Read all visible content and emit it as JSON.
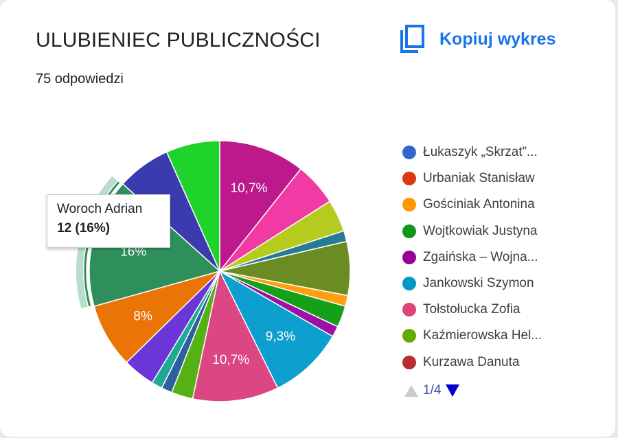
{
  "header": {
    "title": "ULUBIENIEC PUBLICZNOŚCI",
    "responses": "75 odpowiedzi",
    "copy_label": "Kopiuj wykres",
    "copy_icon": "copy-icon"
  },
  "chart_data": {
    "type": "pie",
    "title": "ULUBIENIEC PUBLICZNOŚCI",
    "total": 75,
    "slices": [
      {
        "value": 8,
        "color": "#bc1a8c",
        "label_text": "10,7%"
      },
      {
        "value": 4,
        "color": "#f23aa5",
        "label_text": ""
      },
      {
        "value": 3,
        "color": "#b5cc1e",
        "label_text": ""
      },
      {
        "value": 1,
        "color": "#287b97",
        "label_text": ""
      },
      {
        "value": 5,
        "color": "#6b8c22",
        "label_text": ""
      },
      {
        "value": 1,
        "color": "#ff9f10",
        "label_text": ""
      },
      {
        "value": 2,
        "color": "#16a01a",
        "label_text": ""
      },
      {
        "value": 1,
        "color": "#9c0fa8",
        "label_text": ""
      },
      {
        "value": 7,
        "color": "#0d9fce",
        "label_text": "9,3%"
      },
      {
        "value": 8,
        "color": "#dc4682",
        "label_text": "10,7%"
      },
      {
        "value": 2,
        "color": "#56b214",
        "label_text": ""
      },
      {
        "value": 1,
        "color": "#2e5fa0",
        "label_text": ""
      },
      {
        "value": 1,
        "color": "#1fa894",
        "label_text": ""
      },
      {
        "value": 3,
        "color": "#6b36d8",
        "label_text": ""
      },
      {
        "value": 6,
        "color": "#ea7406",
        "label_text": "8%"
      },
      {
        "value": 12,
        "color": "#2f8f5c",
        "label_text": "16%",
        "name": "Woroch Adrian",
        "highlighted": true
      },
      {
        "value": 5,
        "color": "#3b3bb0",
        "label_text": ""
      },
      {
        "value": 5,
        "color": "#1ed42a",
        "label_text": ""
      }
    ],
    "tooltip": {
      "name": "Woroch Adrian",
      "value": "12 (16%)"
    },
    "legend": {
      "placement": "right",
      "items": [
        {
          "label": "Łukaszyk „Skrzat”...",
          "color": "#3366cc"
        },
        {
          "label": "Urbaniak Stanisław",
          "color": "#dc3912"
        },
        {
          "label": "Gościniak Antonina",
          "color": "#ff9900"
        },
        {
          "label": "Wojtkowiak Justyna",
          "color": "#109618"
        },
        {
          "label": "Zgaińska – Wojna...",
          "color": "#990099"
        },
        {
          "label": "Jankowski Szymon",
          "color": "#0099c6"
        },
        {
          "label": "Tołstołucka Zofia",
          "color": "#dd4477"
        },
        {
          "label": "Kaźmierowska Hel...",
          "color": "#66aa00"
        },
        {
          "label": "Kurzawa Danuta",
          "color": "#b82e2e"
        }
      ],
      "page": "1/4"
    }
  }
}
